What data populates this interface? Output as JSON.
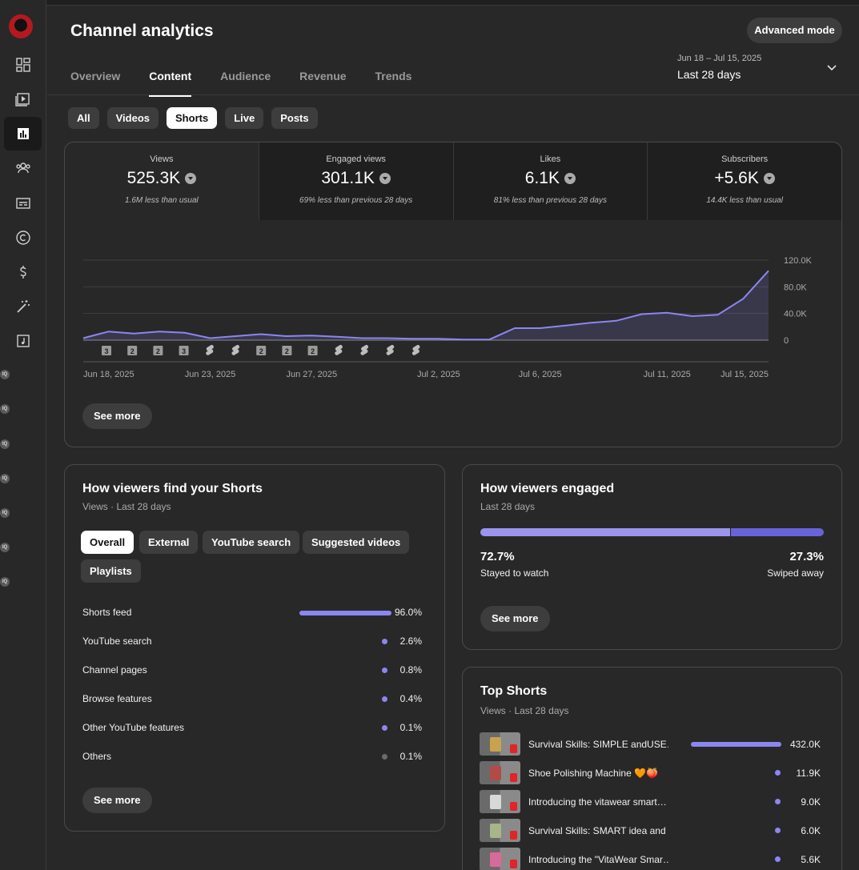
{
  "page": {
    "title": "Channel analytics",
    "advanced_mode_label": "Advanced mode",
    "tabs": [
      "Overview",
      "Content",
      "Audience",
      "Revenue",
      "Trends"
    ],
    "active_tab": "Content",
    "date_range": {
      "range": "Jun 18 – Jul 15, 2025",
      "label": "Last 28 days"
    }
  },
  "content_chips": [
    "All",
    "Videos",
    "Shorts",
    "Live",
    "Posts"
  ],
  "selected_chip": "Shorts",
  "metrics": [
    {
      "label": "Views",
      "value": "525.3K",
      "note": "1.6M less than usual"
    },
    {
      "label": "Engaged views",
      "value": "301.1K",
      "note": "69% less than previous 28 days"
    },
    {
      "label": "Likes",
      "value": "6.1K",
      "note": "81% less than previous 28 days"
    },
    {
      "label": "Subscribers",
      "value": "+5.6K",
      "note": "14.4K less than usual"
    }
  ],
  "chart_data": {
    "type": "area",
    "title": "",
    "series": [
      {
        "values": [
          3,
          13,
          10,
          13,
          11,
          3,
          6,
          9,
          6,
          7,
          5,
          3,
          3,
          2,
          2,
          1,
          1,
          18,
          18,
          22,
          26,
          29,
          39,
          41,
          36,
          38,
          62,
          104
        ]
      }
    ],
    "x_ticks": [
      "Jun 18, 2025",
      "Jun 23, 2025",
      "Jun 27, 2025",
      "Jul 2, 2025",
      "Jul 6, 2025",
      "Jul 11, 2025",
      "Jul 15, 2025"
    ],
    "y_ticks": [
      "120.0K",
      "80.0K",
      "40.0K",
      "0"
    ],
    "ylim": [
      0,
      120
    ],
    "unit_note": "values in thousands of views",
    "markers": [
      "3",
      "2",
      "2",
      "3",
      "shorts",
      "shorts",
      "2",
      "2",
      "2",
      "shorts",
      "shorts",
      "shorts",
      "shorts"
    ],
    "grid": true
  },
  "see_more_label": "See more",
  "find_card": {
    "title": "How viewers find your Shorts",
    "subtitle": "Views · Last 28 days",
    "filters": [
      "Overall",
      "External",
      "YouTube search",
      "Suggested videos",
      "Playlists"
    ],
    "selected_filter": "Overall",
    "rows": [
      {
        "label": "Shorts feed",
        "pct": "96.0%",
        "value": 96.0
      },
      {
        "label": "YouTube search",
        "pct": "2.6%",
        "value": 2.6
      },
      {
        "label": "Channel pages",
        "pct": "0.8%",
        "value": 0.8
      },
      {
        "label": "Browse features",
        "pct": "0.4%",
        "value": 0.4
      },
      {
        "label": "Other YouTube features",
        "pct": "0.1%",
        "value": 0.1
      },
      {
        "label": "Others",
        "pct": "0.1%",
        "value": 0.1
      }
    ]
  },
  "engaged_card": {
    "title": "How viewers engaged",
    "subtitle": "Last 28 days",
    "stayed_pct": "72.7%",
    "stayed_label": "Stayed to watch",
    "stayed_value": 72.7,
    "swiped_pct": "27.3%",
    "swiped_label": "Swiped away"
  },
  "top_card": {
    "title": "Top Shorts",
    "subtitle": "Views · Last 28 days",
    "rows": [
      {
        "title": "Survival Skills: SIMPLE andUSE…",
        "views": "432.0K",
        "value": 432.0
      },
      {
        "title": "Shoe Polishing Machine 🧡🍑",
        "views": "11.9K",
        "value": 11.9
      },
      {
        "title": "Introducing the vitawear smart…",
        "views": "9.0K",
        "value": 9.0
      },
      {
        "title": "Survival Skills: SMART idea and …",
        "views": "6.0K",
        "value": 6.0
      },
      {
        "title": "Introducing the \"VitaWear Smar…",
        "views": "5.6K",
        "value": 5.6
      }
    ]
  },
  "colors": {
    "accent": "#8b86f0",
    "accent_dark": "#6863d9",
    "bg": "#282828"
  }
}
